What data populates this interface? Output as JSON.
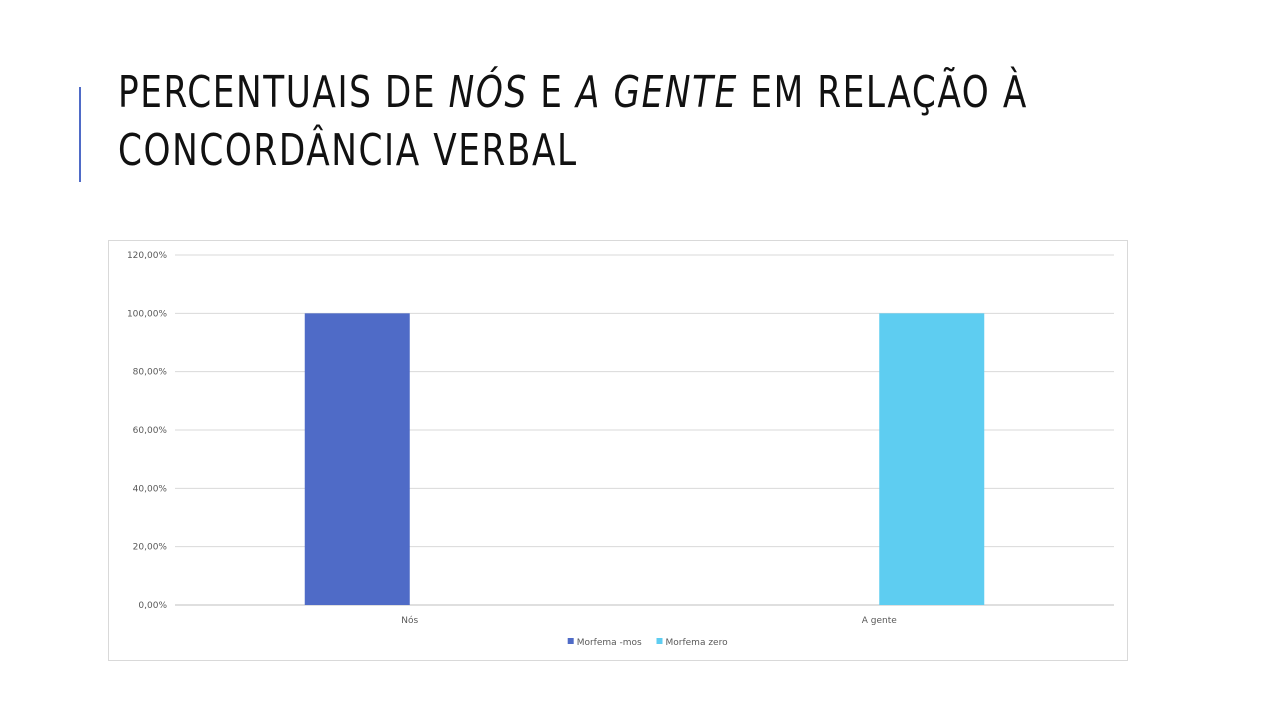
{
  "slide": {
    "title_line1_part1": "PERCENTUAIS DE ",
    "title_line1_em1": "NÓS",
    "title_line1_part2": " E ",
    "title_line1_em2": "A GENTE",
    "title_line1_part3": " EM RELAÇÃO À",
    "title_line2": "CONCORDÂNCIA VERBAL",
    "accent_color": "#4f6bc7"
  },
  "chart_data": {
    "type": "bar",
    "categories": [
      "Nós",
      "A gente"
    ],
    "series": [
      {
        "name": "Morfema -mos",
        "values": [
          1.0,
          0.0
        ],
        "color": "#4f6bc7"
      },
      {
        "name": "Morfema zero",
        "values": [
          0.0,
          1.0
        ],
        "color": "#5ecdf1"
      }
    ],
    "ylim": [
      0,
      1.2
    ],
    "yticks": [
      0,
      0.2,
      0.4,
      0.6,
      0.8,
      1.0,
      1.2
    ],
    "ytick_labels": [
      "0,00%",
      "20,00%",
      "40,00%",
      "60,00%",
      "80,00%",
      "100,00%",
      "120,00%"
    ],
    "grid": true,
    "legend": "bottom"
  }
}
